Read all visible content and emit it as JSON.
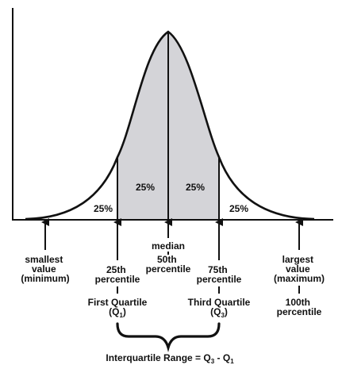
{
  "colors": {
    "ink": "#111111",
    "iqr_fill": "#d4d4d8",
    "background": "#ffffff"
  },
  "regions": {
    "q1_tail": "25%",
    "q2": "25%",
    "q3": "25%",
    "q4_tail": "25%"
  },
  "markers": {
    "minimum": [
      "smallest",
      "value",
      "(minimum)"
    ],
    "q1": [
      "25th",
      "percentile"
    ],
    "median": [
      "median",
      "50th",
      "percentile"
    ],
    "q3": [
      "75th",
      "percentile"
    ],
    "maximum": [
      "largest",
      "value",
      "(maximum)"
    ]
  },
  "quartiles": {
    "first": {
      "name": "First Quartile",
      "sym": "(Q",
      "sub": "1",
      "close": ")"
    },
    "third": {
      "name": "Third Quartile",
      "sym": "(Q",
      "sub": "3",
      "close": ")"
    }
  },
  "hundredth": [
    "100th",
    "percentile"
  ],
  "iqr": {
    "prefix": "Interquartile Range = Q",
    "sub1": "3",
    "mid": " - Q",
    "sub2": "1"
  }
}
